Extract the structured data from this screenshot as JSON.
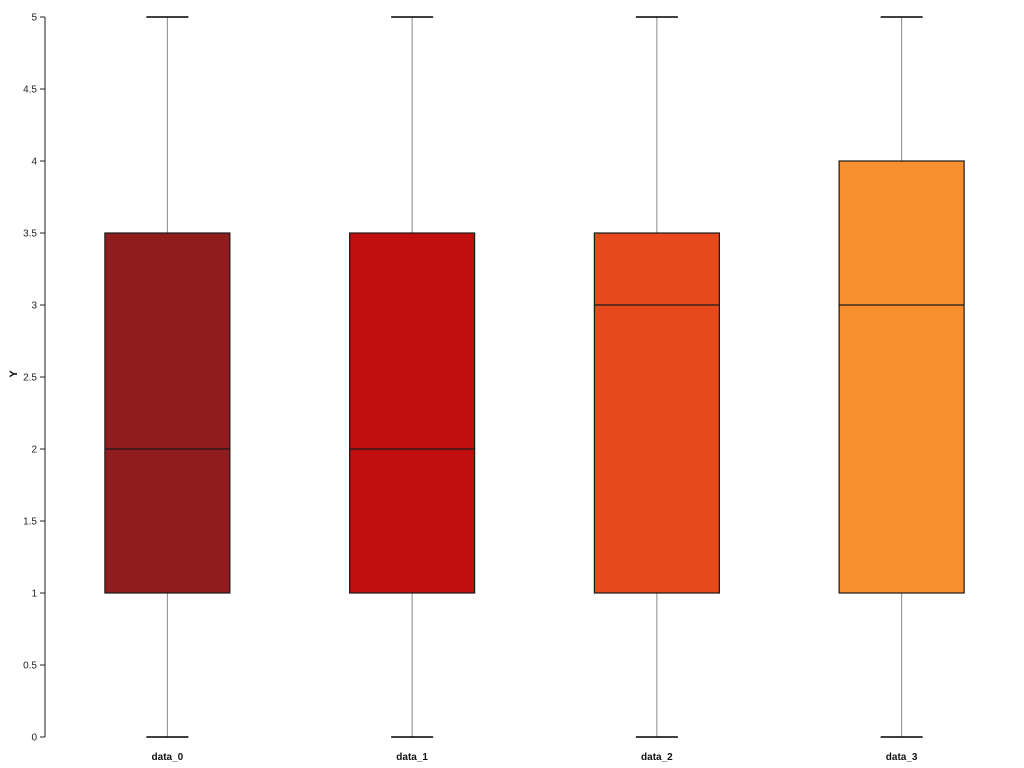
{
  "chart_data": {
    "type": "boxplot",
    "title": "",
    "xlabel": "",
    "ylabel": "Y",
    "ylim": [
      0,
      5
    ],
    "yticks": [
      0,
      0.5,
      1,
      1.5,
      2,
      2.5,
      3,
      3.5,
      4,
      4.5,
      5
    ],
    "grid": false,
    "legend": false,
    "categories": [
      "data_0",
      "data_1",
      "data_2",
      "data_3"
    ],
    "series": [
      {
        "name": "data_0",
        "min": 0,
        "q1": 1,
        "median": 2,
        "q3": 3.5,
        "max": 5,
        "color": "#8f1d1d"
      },
      {
        "name": "data_1",
        "min": 0,
        "q1": 1,
        "median": 2,
        "q3": 3.5,
        "max": 5,
        "color": "#c10f0f"
      },
      {
        "name": "data_2",
        "min": 0,
        "q1": 1,
        "median": 3,
        "q3": 3.5,
        "max": 5,
        "color": "#e8491c"
      },
      {
        "name": "data_3",
        "min": 0,
        "q1": 1,
        "median": 3,
        "q3": 4,
        "max": 5,
        "color": "#f78f2e"
      }
    ],
    "style": {
      "axis_color": "#222222",
      "box_edge_color": "#1a1a1a",
      "median_color": "#1a1a1a",
      "whisker_color": "#888888",
      "cap_color": "#000000"
    }
  }
}
